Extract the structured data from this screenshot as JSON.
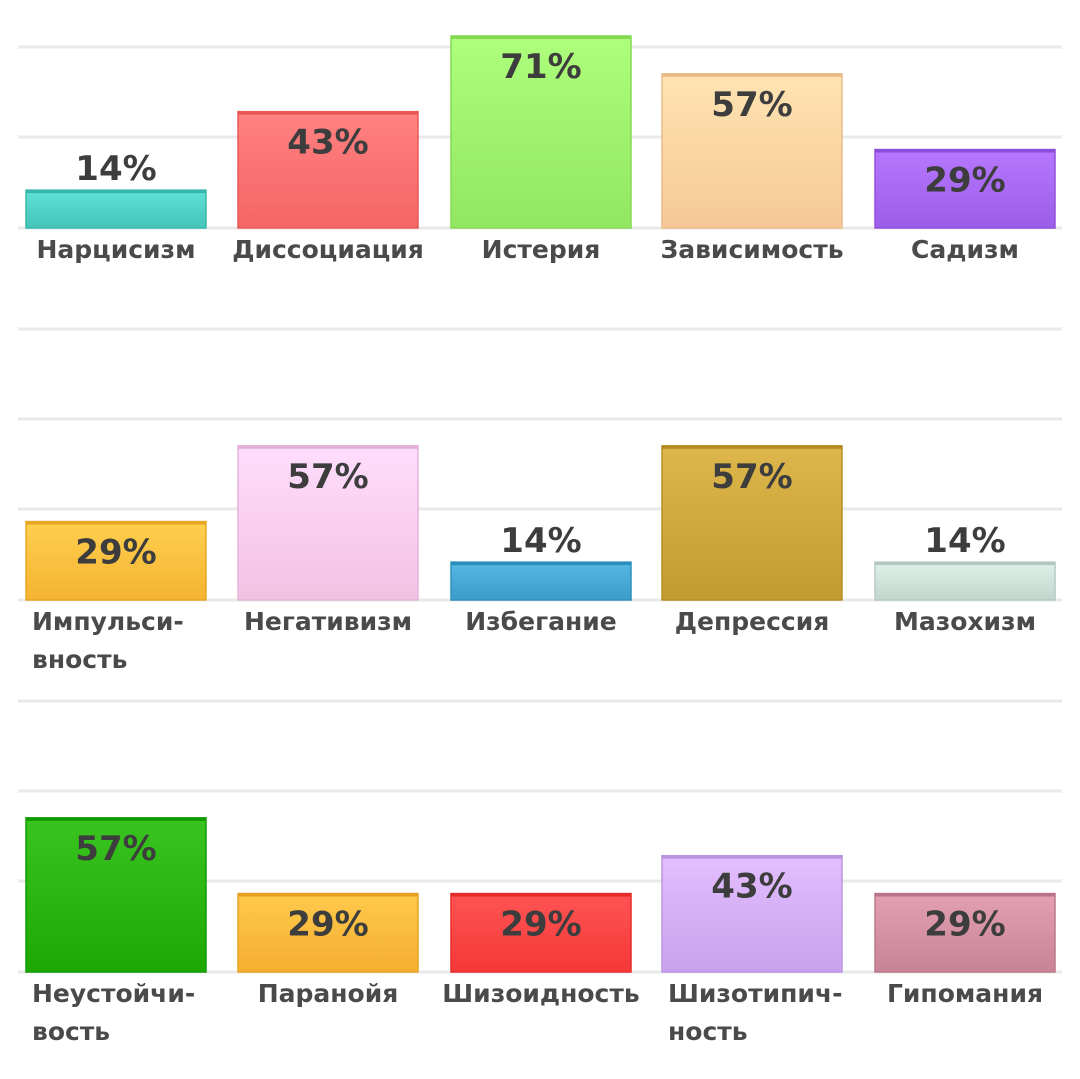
{
  "chart_data": [
    {
      "type": "bar",
      "categories": [
        "Нарцисизм",
        "Диссоциация",
        "Истерия",
        "Зависимость",
        "Садизм"
      ],
      "values": [
        14,
        43,
        71,
        57,
        29
      ],
      "labels": [
        "14%",
        "43%",
        "71%",
        "57%",
        "29%"
      ],
      "colors": [
        "#4fcfc4",
        "#ff6f6f",
        "#9cf06a",
        "#ffd2a0",
        "#a566f2"
      ],
      "ylim": [
        0,
        75
      ],
      "grid": true
    },
    {
      "type": "bar",
      "categories": [
        "Импульси-\nвность",
        "Негативизм",
        "Избегание",
        "Депрессия",
        "Мазохизм"
      ],
      "values": [
        29,
        57,
        14,
        57,
        14
      ],
      "labels": [
        "29%",
        "57%",
        "14%",
        "57%",
        "14%"
      ],
      "colors": [
        "#ffbd3c",
        "#fccbec",
        "#44a6d2",
        "#cca53a",
        "#cce0d8"
      ],
      "ylim": [
        0,
        75
      ],
      "grid": true
    },
    {
      "type": "bar",
      "categories": [
        "Неустойчи-\nвость",
        "Паранойя",
        "Шизоидность",
        "Шизотипич-\nность",
        "Гипомания"
      ],
      "values": [
        57,
        29,
        29,
        43,
        29
      ],
      "labels": [
        "57%",
        "29%",
        "29%",
        "43%",
        "29%"
      ],
      "colors": [
        "#27b20e",
        "#ffb83a",
        "#ff4242",
        "#d2acf6",
        "#d18ea0"
      ],
      "ylim": [
        0,
        75
      ],
      "grid": true
    }
  ]
}
